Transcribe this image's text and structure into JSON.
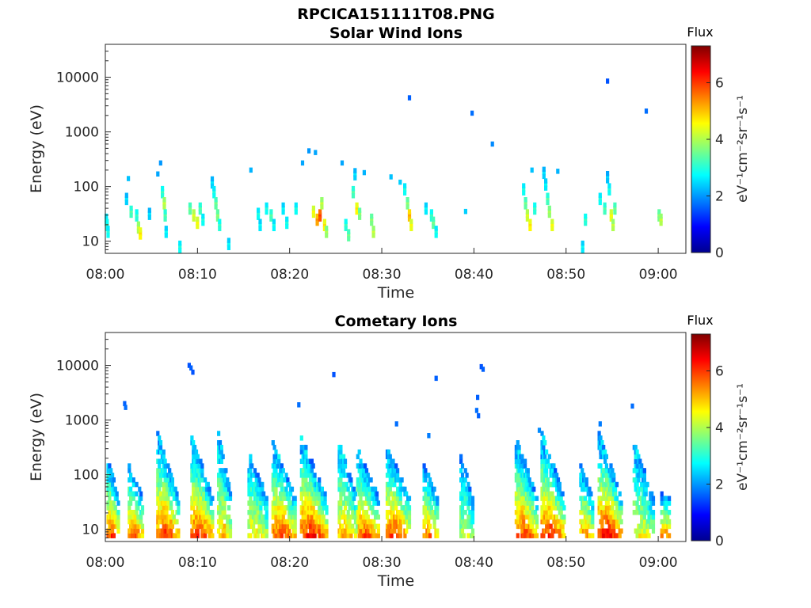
{
  "figure_title": "RPCICA151111T08.PNG",
  "colormap": "jet",
  "chart_data": [
    {
      "type": "heatmap",
      "title": "Solar Wind Ions",
      "xlabel": "Time",
      "ylabel": "Energy (eV)",
      "x_ticks": [
        "08:00",
        "08:10",
        "08:20",
        "08:30",
        "08:40",
        "08:50",
        "09:00"
      ],
      "x_range": [
        "08:00",
        "09:03"
      ],
      "y_scale": "log",
      "y_ticks": [
        "10",
        "100",
        "1000",
        "10000"
      ],
      "y_range": [
        6,
        40000
      ],
      "colorbar": {
        "title": "Flux",
        "label": "eV⁻¹cm⁻²sr⁻¹s⁻¹",
        "ticks": [
          "0",
          "2",
          "4",
          "6"
        ],
        "range": [
          0,
          7.3
        ]
      },
      "cells": [
        {
          "t": 0.1,
          "e": 25,
          "v": 3.0
        },
        {
          "t": 0.2,
          "e": 20,
          "v": 3.2
        },
        {
          "t": 0.3,
          "e": 15,
          "v": 3.0
        },
        {
          "t": 2.3,
          "e": 60,
          "v": 2.6
        },
        {
          "t": 2.5,
          "e": 140,
          "v": 2.3
        },
        {
          "t": 2.8,
          "e": 35,
          "v": 3.4
        },
        {
          "t": 3.4,
          "e": 30,
          "v": 3.2
        },
        {
          "t": 3.6,
          "e": 18,
          "v": 4.2
        },
        {
          "t": 3.8,
          "e": 14,
          "v": 4.8
        },
        {
          "t": 4.8,
          "e": 32,
          "v": 2.6
        },
        {
          "t": 5.7,
          "e": 170,
          "v": 2.1
        },
        {
          "t": 6.0,
          "e": 270,
          "v": 2.0
        },
        {
          "t": 6.2,
          "e": 80,
          "v": 3.2
        },
        {
          "t": 6.4,
          "e": 50,
          "v": 4.2
        },
        {
          "t": 6.5,
          "e": 30,
          "v": 3.4
        },
        {
          "t": 6.6,
          "e": 15,
          "v": 2.8
        },
        {
          "t": 8.1,
          "e": 8,
          "v": 3.0
        },
        {
          "t": 9.2,
          "e": 40,
          "v": 3.6
        },
        {
          "t": 9.6,
          "e": 30,
          "v": 4.4
        },
        {
          "t": 10.0,
          "e": 22,
          "v": 4.6
        },
        {
          "t": 10.3,
          "e": 40,
          "v": 3.4
        },
        {
          "t": 10.6,
          "e": 25,
          "v": 3.0
        },
        {
          "t": 11.6,
          "e": 120,
          "v": 2.6
        },
        {
          "t": 11.8,
          "e": 80,
          "v": 3.0
        },
        {
          "t": 12.0,
          "e": 50,
          "v": 3.6
        },
        {
          "t": 12.2,
          "e": 30,
          "v": 3.8
        },
        {
          "t": 12.4,
          "e": 20,
          "v": 3.2
        },
        {
          "t": 13.4,
          "e": 9,
          "v": 2.8
        },
        {
          "t": 15.8,
          "e": 200,
          "v": 2.2
        },
        {
          "t": 16.6,
          "e": 32,
          "v": 3.0
        },
        {
          "t": 16.8,
          "e": 20,
          "v": 2.8
        },
        {
          "t": 17.5,
          "e": 40,
          "v": 3.0
        },
        {
          "t": 18.0,
          "e": 30,
          "v": 3.4
        },
        {
          "t": 18.3,
          "e": 20,
          "v": 2.9
        },
        {
          "t": 19.3,
          "e": 40,
          "v": 2.8
        },
        {
          "t": 19.7,
          "e": 22,
          "v": 3.0
        },
        {
          "t": 20.7,
          "e": 40,
          "v": 3.0
        },
        {
          "t": 21.4,
          "e": 270,
          "v": 2.1
        },
        {
          "t": 22.1,
          "e": 450,
          "v": 2.0
        },
        {
          "t": 22.8,
          "e": 420,
          "v": 2.1
        },
        {
          "t": 22.6,
          "e": 35,
          "v": 4.6
        },
        {
          "t": 23.0,
          "e": 25,
          "v": 5.4
        },
        {
          "t": 23.3,
          "e": 30,
          "v": 6.0
        },
        {
          "t": 23.5,
          "e": 50,
          "v": 4.2
        },
        {
          "t": 23.8,
          "e": 20,
          "v": 4.8
        },
        {
          "t": 24.0,
          "e": 15,
          "v": 4.0
        },
        {
          "t": 25.7,
          "e": 270,
          "v": 2.1
        },
        {
          "t": 26.1,
          "e": 20,
          "v": 3.2
        },
        {
          "t": 26.4,
          "e": 13,
          "v": 3.6
        },
        {
          "t": 26.9,
          "e": 80,
          "v": 3.4
        },
        {
          "t": 27.1,
          "e": 170,
          "v": 2.6
        },
        {
          "t": 27.3,
          "e": 40,
          "v": 4.8
        },
        {
          "t": 27.6,
          "e": 32,
          "v": 3.8
        },
        {
          "t": 28.1,
          "e": 180,
          "v": 2.2
        },
        {
          "t": 28.9,
          "e": 25,
          "v": 3.8
        },
        {
          "t": 29.1,
          "e": 15,
          "v": 4.2
        },
        {
          "t": 31.0,
          "e": 150,
          "v": 2.3
        },
        {
          "t": 32.0,
          "e": 120,
          "v": 2.4
        },
        {
          "t": 32.5,
          "e": 90,
          "v": 3.0
        },
        {
          "t": 32.8,
          "e": 50,
          "v": 3.8
        },
        {
          "t": 33.0,
          "e": 30,
          "v": 5.2
        },
        {
          "t": 33.2,
          "e": 20,
          "v": 4.6
        },
        {
          "t": 33.0,
          "e": 4200,
          "v": 1.6
        },
        {
          "t": 34.8,
          "e": 40,
          "v": 2.8
        },
        {
          "t": 35.4,
          "e": 30,
          "v": 3.2
        },
        {
          "t": 35.6,
          "e": 22,
          "v": 3.6
        },
        {
          "t": 35.9,
          "e": 15,
          "v": 3.0
        },
        {
          "t": 39.1,
          "e": 35,
          "v": 2.4
        },
        {
          "t": 39.8,
          "e": 2200,
          "v": 1.7
        },
        {
          "t": 42.0,
          "e": 600,
          "v": 1.9
        },
        {
          "t": 45.4,
          "e": 90,
          "v": 3.0
        },
        {
          "t": 45.6,
          "e": 50,
          "v": 3.6
        },
        {
          "t": 45.8,
          "e": 30,
          "v": 4.4
        },
        {
          "t": 46.1,
          "e": 20,
          "v": 4.8
        },
        {
          "t": 46.3,
          "e": 200,
          "v": 2.3
        },
        {
          "t": 46.6,
          "e": 40,
          "v": 3.2
        },
        {
          "t": 47.6,
          "e": 180,
          "v": 2.6
        },
        {
          "t": 47.8,
          "e": 110,
          "v": 2.8
        },
        {
          "t": 48.0,
          "e": 60,
          "v": 3.4
        },
        {
          "t": 48.2,
          "e": 35,
          "v": 4.0
        },
        {
          "t": 48.5,
          "e": 20,
          "v": 4.6
        },
        {
          "t": 49.1,
          "e": 190,
          "v": 2.2
        },
        {
          "t": 51.8,
          "e": 8,
          "v": 2.8
        },
        {
          "t": 52.1,
          "e": 25,
          "v": 3.2
        },
        {
          "t": 53.7,
          "e": 60,
          "v": 3.0
        },
        {
          "t": 54.2,
          "e": 40,
          "v": 3.4
        },
        {
          "t": 54.5,
          "e": 150,
          "v": 2.5
        },
        {
          "t": 54.7,
          "e": 90,
          "v": 3.0
        },
        {
          "t": 54.9,
          "e": 30,
          "v": 4.6
        },
        {
          "t": 55.1,
          "e": 20,
          "v": 4.2
        },
        {
          "t": 55.3,
          "e": 40,
          "v": 3.6
        },
        {
          "t": 54.5,
          "e": 8500,
          "v": 1.5
        },
        {
          "t": 58.7,
          "e": 2400,
          "v": 1.7
        },
        {
          "t": 60.1,
          "e": 30,
          "v": 3.8
        },
        {
          "t": 60.3,
          "e": 25,
          "v": 4.2
        }
      ]
    },
    {
      "type": "heatmap",
      "title": "Cometary Ions",
      "xlabel": "Time",
      "ylabel": "Energy (eV)",
      "x_ticks": [
        "08:00",
        "08:10",
        "08:20",
        "08:30",
        "08:40",
        "08:50",
        "09:00"
      ],
      "x_range": [
        "08:00",
        "09:03"
      ],
      "y_scale": "log",
      "y_ticks": [
        "10",
        "100",
        "1000",
        "10000"
      ],
      "y_range": [
        6,
        40000
      ],
      "colorbar": {
        "title": "Flux",
        "label": "eV⁻¹cm⁻²sr⁻¹s⁻¹",
        "ticks": [
          "0",
          "2",
          "4",
          "6"
        ],
        "range": [
          0,
          7.3
        ]
      },
      "bursts": [
        {
          "t": 0.3,
          "d": 1.2,
          "hi": 220,
          "peak": 6.3
        },
        {
          "t": 2.6,
          "d": 1.6,
          "hi": 160,
          "peak": 6.1
        },
        {
          "t": 5.7,
          "d": 2.4,
          "hi": 620,
          "peak": 6.4
        },
        {
          "t": 9.4,
          "d": 2.4,
          "hi": 520,
          "peak": 6.5
        },
        {
          "t": 12.3,
          "d": 1.5,
          "hi": 620,
          "peak": 5.4
        },
        {
          "t": 15.6,
          "d": 2.0,
          "hi": 300,
          "peak": 5.0
        },
        {
          "t": 18.2,
          "d": 2.6,
          "hi": 420,
          "peak": 6.3
        },
        {
          "t": 21.3,
          "d": 2.8,
          "hi": 500,
          "peak": 6.7
        },
        {
          "t": 25.4,
          "d": 2.0,
          "hi": 440,
          "peak": 5.6
        },
        {
          "t": 27.4,
          "d": 2.4,
          "hi": 300,
          "peak": 6.2
        },
        {
          "t": 30.6,
          "d": 2.6,
          "hi": 340,
          "peak": 6.5
        },
        {
          "t": 34.6,
          "d": 1.6,
          "hi": 160,
          "peak": 6.0
        },
        {
          "t": 38.6,
          "d": 1.4,
          "hi": 220,
          "peak": 4.6
        },
        {
          "t": 44.6,
          "d": 2.4,
          "hi": 520,
          "peak": 6.4
        },
        {
          "t": 47.4,
          "d": 2.6,
          "hi": 640,
          "peak": 6.5
        },
        {
          "t": 51.6,
          "d": 1.4,
          "hi": 160,
          "peak": 5.8
        },
        {
          "t": 53.6,
          "d": 2.6,
          "hi": 620,
          "peak": 6.8
        },
        {
          "t": 57.4,
          "d": 2.2,
          "hi": 420,
          "peak": 4.8
        },
        {
          "t": 60.4,
          "d": 1.0,
          "hi": 45,
          "peak": 6.2
        }
      ],
      "cells": [
        {
          "t": 9.1,
          "e": 10000,
          "v": 1.5
        },
        {
          "t": 9.3,
          "e": 9000,
          "v": 1.6
        },
        {
          "t": 9.5,
          "e": 7500,
          "v": 1.5
        },
        {
          "t": 2.1,
          "e": 2000,
          "v": 1.6
        },
        {
          "t": 2.2,
          "e": 1700,
          "v": 1.7
        },
        {
          "t": 21.0,
          "e": 1900,
          "v": 1.7
        },
        {
          "t": 24.8,
          "e": 6800,
          "v": 1.5
        },
        {
          "t": 31.6,
          "e": 850,
          "v": 1.7
        },
        {
          "t": 35.9,
          "e": 5800,
          "v": 1.6
        },
        {
          "t": 35.1,
          "e": 520,
          "v": 1.8
        },
        {
          "t": 40.4,
          "e": 2600,
          "v": 1.6
        },
        {
          "t": 40.3,
          "e": 1500,
          "v": 1.7
        },
        {
          "t": 40.5,
          "e": 1200,
          "v": 1.6
        },
        {
          "t": 40.8,
          "e": 9500,
          "v": 1.5
        },
        {
          "t": 41.0,
          "e": 8500,
          "v": 1.6
        },
        {
          "t": 57.2,
          "e": 1800,
          "v": 1.7
        },
        {
          "t": 53.7,
          "e": 850,
          "v": 1.8
        },
        {
          "t": 47.1,
          "e": 650,
          "v": 1.9
        }
      ]
    }
  ]
}
